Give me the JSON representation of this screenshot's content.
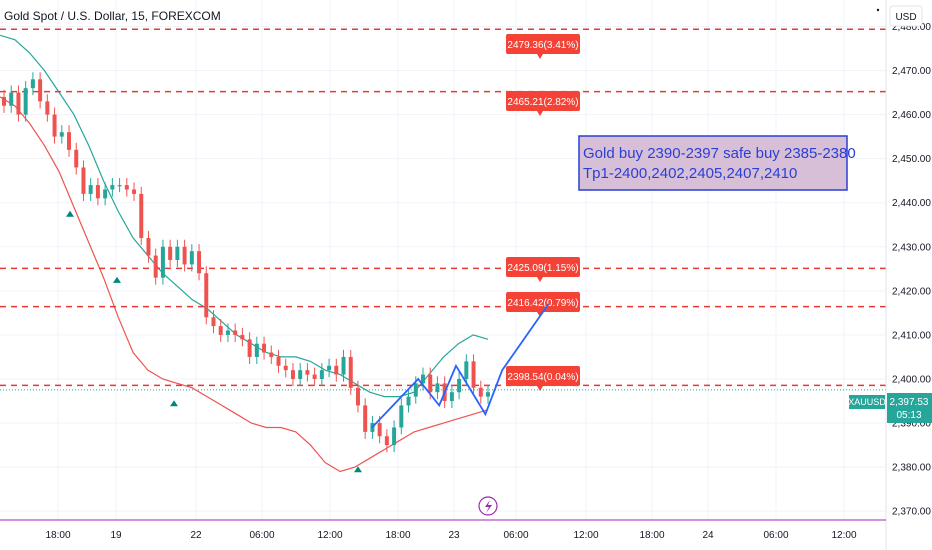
{
  "header": {
    "title": "Gold Spot / U.S. Dollar, 15, FOREXCOM",
    "currency_button": "USD"
  },
  "colors": {
    "up": "#26a69a",
    "down": "#ef5350",
    "level_line": "#e53935",
    "upper_band": "#26a69a",
    "lower_band": "#ef5350",
    "projection": "#2962ff",
    "note_text": "#2a3fd4",
    "note_fill": "#d8bfd8",
    "note_border": "#2a3fd4",
    "price_tag": "#26a69a",
    "bolt": "#9c27b0",
    "grid": "#f0f3fa"
  },
  "chart_data": {
    "type": "candlestick",
    "title": "Gold Spot / U.S. Dollar, 15, FOREXCOM",
    "symbol": "XAUUSD",
    "last_price": "2,397.53",
    "countdown": "05:13",
    "ylim": [
      2368,
      2486
    ],
    "y_ticks": [
      "2,370.00",
      "2,380.00",
      "2,390.00",
      "2,400.00",
      "2,410.00",
      "2,420.00",
      "2,430.00",
      "2,440.00",
      "2,450.00",
      "2,460.00",
      "2,470.00",
      "2,480.00"
    ],
    "y_tick_values": [
      2370,
      2380,
      2390,
      2400,
      2410,
      2420,
      2430,
      2440,
      2450,
      2460,
      2470,
      2480
    ],
    "x_ticks": [
      "18:00",
      "19",
      "22",
      "06:00",
      "12:00",
      "18:00",
      "23",
      "06:00",
      "12:00",
      "18:00",
      "24",
      "06:00",
      "12:00"
    ],
    "levels": [
      {
        "price": 2479.36,
        "label": "2479.36(3.41%)"
      },
      {
        "price": 2465.21,
        "label": "2465.21(2.82%)"
      },
      {
        "price": 2425.09,
        "label": "2425.09(1.15%)"
      },
      {
        "price": 2416.42,
        "label": "2416.42(0.79%)"
      },
      {
        "price": 2398.54,
        "label": "2398.54(0.04%)"
      }
    ],
    "current_price_value": 2397.53,
    "annotation": {
      "line1": "Gold buy 2390-2397 safe buy 2385-2380",
      "line2": "Tp1-2400,2402,2405,2407,2410"
    },
    "candles_close": [
      2462,
      2465,
      2460,
      2466,
      2468,
      2463,
      2460,
      2455,
      2456,
      2452,
      2448,
      2442,
      2444,
      2441,
      2443,
      2444,
      2444,
      2443,
      2442,
      2432,
      2428,
      2423,
      2430,
      2427,
      2430,
      2426,
      2429,
      2424,
      2414,
      2412,
      2410,
      2411,
      2410,
      2409,
      2405,
      2408,
      2406,
      2405,
      2403,
      2402,
      2400,
      2402,
      2401,
      2400,
      2402,
      2403,
      2401,
      2405,
      2398,
      2394,
      2388,
      2390,
      2387,
      2385,
      2389,
      2394,
      2396,
      2399,
      2401,
      2397,
      2399,
      2395,
      2397,
      2400,
      2404,
      2398,
      2396,
      2397
    ],
    "upper_band": [
      2478,
      2477,
      2474,
      2470,
      2465,
      2460,
      2453,
      2445,
      2438,
      2432,
      2428,
      2424,
      2421,
      2418,
      2416,
      2413,
      2410,
      2408,
      2406,
      2405,
      2405,
      2404,
      2402,
      2401,
      2399,
      2397,
      2396,
      2396,
      2397,
      2401,
      2405,
      2408,
      2410,
      2409
    ],
    "lower_band": [
      2464,
      2462,
      2458,
      2453,
      2447,
      2439,
      2431,
      2423,
      2414,
      2406,
      2402,
      2400,
      2399,
      2398,
      2396,
      2394,
      2392,
      2390,
      2389,
      2389,
      2388,
      2385,
      2381,
      2379,
      2380,
      2382,
      2384,
      2386,
      2388,
      2389,
      2390,
      2391,
      2392,
      2393
    ],
    "projection": [
      [
        2389,
        0
      ],
      [
        2400,
        11
      ],
      [
        2394,
        16
      ],
      [
        2403,
        20
      ],
      [
        2392,
        27
      ],
      [
        2402,
        31
      ],
      [
        2417,
        42
      ]
    ],
    "projection_comment": ""
  }
}
